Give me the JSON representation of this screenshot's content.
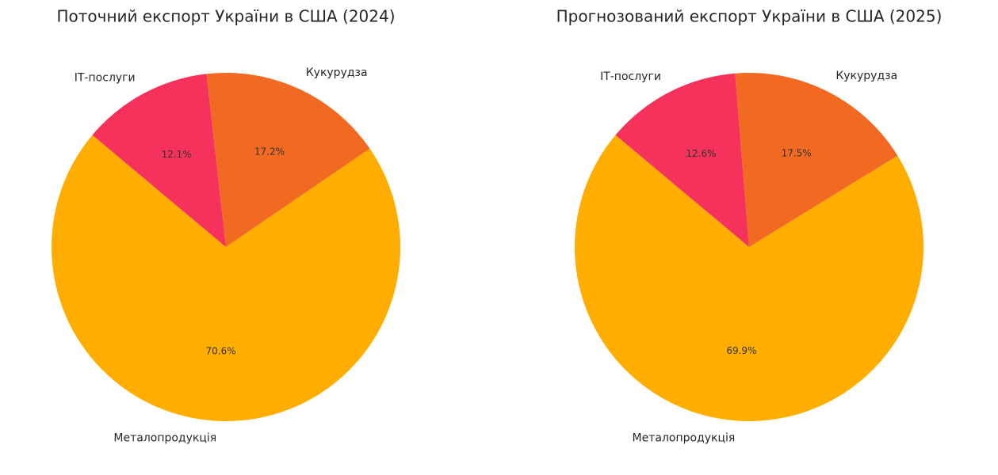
{
  "chart_data": [
    {
      "type": "pie",
      "title": "Поточний експорт України в США (2024)",
      "categories": [
        "Металопродукція",
        "Кукурудза",
        "ІТ-послуги"
      ],
      "values": [
        70.6,
        17.2,
        12.1
      ],
      "value_labels": [
        "70.6%",
        "17.2%",
        "12.1%"
      ],
      "colors": [
        "#ffae00",
        "#f26a22",
        "#f5325b"
      ]
    },
    {
      "type": "pie",
      "title": "Прогнозований експорт України в США (2025)",
      "categories": [
        "Металопродукція",
        "Кукурудза",
        "ІТ-послуги"
      ],
      "values": [
        69.9,
        17.5,
        12.6
      ],
      "value_labels": [
        "69.9%",
        "17.5%",
        "12.6%"
      ],
      "colors": [
        "#ffae00",
        "#f26a22",
        "#f5325b"
      ]
    }
  ]
}
